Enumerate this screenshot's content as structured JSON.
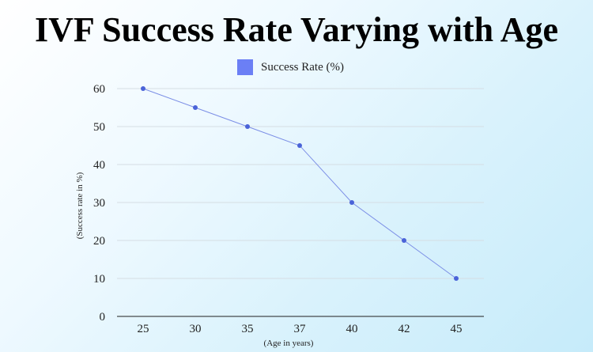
{
  "chart_data": {
    "type": "line",
    "title": "IVF Success Rate Varying with Age",
    "xlabel": "(Age in years)",
    "ylabel": "(Success rate in %)",
    "categories": [
      "25",
      "30",
      "35",
      "37",
      "40",
      "42",
      "45"
    ],
    "series": [
      {
        "name": "Success Rate (%)",
        "values": [
          60,
          55,
          50,
          45,
          30,
          20,
          10
        ]
      }
    ],
    "ylim": [
      0,
      60
    ],
    "yticks": [
      "0",
      "10",
      "20",
      "30",
      "40",
      "50",
      "60"
    ],
    "grid": true,
    "legend_position": "top-center",
    "colors": {
      "line": "#7b8ee6",
      "marker": "#4a63d8",
      "swatch": "#6b7ff5",
      "grid": "#d5dde3",
      "axis": "#1f1f1f"
    }
  }
}
